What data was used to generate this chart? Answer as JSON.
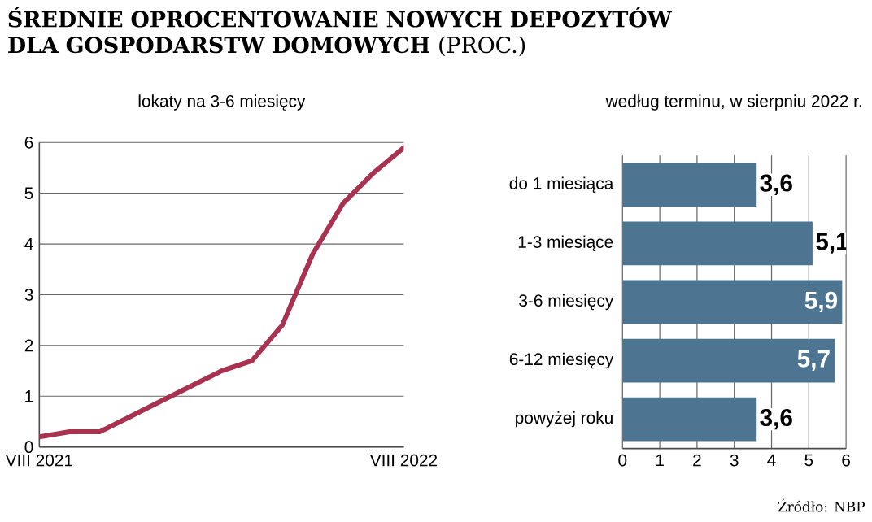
{
  "chart_data": [
    {
      "type": "line",
      "title": "**ŚREDNIE OPROCENTOWANIE NOWYCH DEPOZYTÓW DLA GOSPODARSTW DOMOWYCH** (PROC.)",
      "subtitle": "lokaty na 3-6 miesięcy",
      "x": [
        "2021-08",
        "2021-09",
        "2021-10",
        "2021-11",
        "2021-12",
        "2022-01",
        "2022-02",
        "2022-03",
        "2022-04",
        "2022-05",
        "2022-06",
        "2022-07",
        "2022-08"
      ],
      "series": [
        {
          "color": "#a8324f",
          "values": [
            0.2,
            0.3,
            0.3,
            0.6,
            0.9,
            1.2,
            1.5,
            1.7,
            2.4,
            3.8,
            4.8,
            5.4,
            5.9
          ]
        }
      ],
      "xlim": [
        "2021-08",
        "2022-08"
      ],
      "xticks": [
        {
          "value": "2021-08",
          "label": "VIII 2021"
        },
        {
          "value": "2022-08",
          "label": "VIII 2022"
        }
      ],
      "ylim": [
        0,
        6
      ],
      "yticks": [
        0,
        1,
        2,
        3,
        4,
        5,
        6
      ],
      "grid": "y"
    },
    {
      "type": "bar",
      "orientation": "horizontal",
      "subtitle": "według terminu, w sierpniu 2022 r.",
      "categories": [
        "do 1 miesiąca",
        "1-3 miesiące",
        "3-6 miesięcy",
        "6-12 miesięcy",
        "powyżej roku"
      ],
      "values": [
        3.6,
        5.1,
        5.9,
        5.7,
        3.6
      ],
      "value_labels": [
        "3,6",
        "5,1",
        "5,9",
        "5,7",
        "3,6"
      ],
      "color": "#4d7491",
      "xlim": [
        0,
        6
      ],
      "xticks": [
        0,
        1,
        2,
        3,
        4,
        5,
        6
      ],
      "grid": "x",
      "annotations": [
        "Źródło: NBP"
      ]
    }
  ]
}
